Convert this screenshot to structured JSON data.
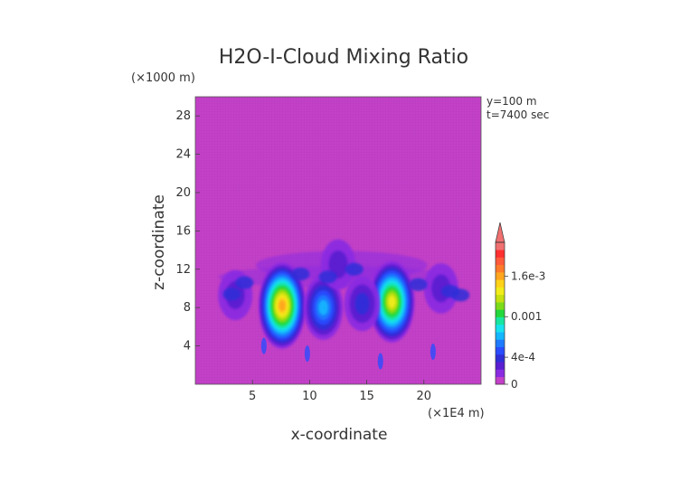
{
  "chart_data": {
    "type": "heatmap",
    "title": "H2O-I-Cloud Mixing Ratio",
    "xlabel": "x-coordinate",
    "ylabel": "z-coordinate",
    "x_unit": "(×1E4 m)",
    "y_unit": "(×1000 m)",
    "annotations": [
      "y=100 m",
      "t=7400 sec"
    ],
    "xlim": [
      0,
      25
    ],
    "ylim": [
      0,
      30
    ],
    "x_ticks": [
      5,
      10,
      15,
      20
    ],
    "y_ticks": [
      4,
      8,
      12,
      16,
      20,
      24,
      28
    ],
    "colorbar": {
      "tick_labels": [
        "1.6e-3",
        "0.001",
        "4e-4",
        "0"
      ],
      "tick_values": [
        0.0016,
        0.001,
        0.0004,
        0
      ],
      "range": [
        0,
        0.0021
      ],
      "extend": "max",
      "colors": [
        "#c341c8",
        "#8a2be2",
        "#5a1fd0",
        "#2f2fd8",
        "#2a4cff",
        "#1e7bff",
        "#13b6ff",
        "#17e3ee",
        "#18e6a0",
        "#22d83c",
        "#7cdb18",
        "#c6e010",
        "#f2ec1a",
        "#ffd21a",
        "#ffa51f",
        "#ff7a2a",
        "#ff5a3a",
        "#ff3030",
        "#f07070"
      ]
    },
    "background_color": "#c341c8",
    "features": [
      {
        "x": 7.6,
        "z": 8.2,
        "value": 0.0017
      },
      {
        "x": 17.2,
        "z": 8.6,
        "value": 0.0015
      },
      {
        "x": 11.2,
        "z": 8.0,
        "value": 0.0008
      },
      {
        "x": 14.6,
        "z": 8.4,
        "value": 0.0004
      },
      {
        "x": 12.5,
        "z": 12.5,
        "value": 0.0002
      },
      {
        "x": 3.5,
        "z": 9.3,
        "value": 0.0002
      },
      {
        "x": 21.5,
        "z": 10.0,
        "value": 0.0002
      }
    ]
  }
}
